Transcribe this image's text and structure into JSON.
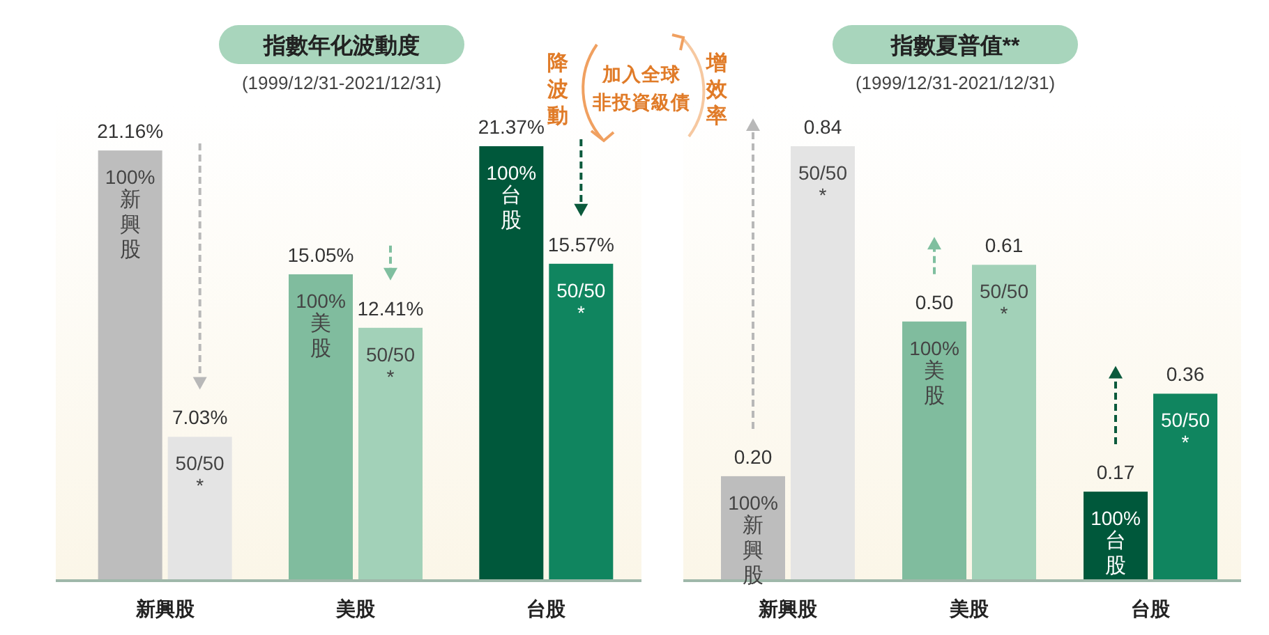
{
  "chart_data": [
    {
      "type": "bar",
      "title": "指數年化波動度",
      "subtitle": "(1999/12/31-2021/12/31)",
      "categories": [
        "新興股",
        "美股",
        "台股"
      ],
      "series": [
        {
          "name": "100%",
          "colors": [
            "#bdbdbd",
            "#80bc9e",
            "#00583b"
          ],
          "values": [
            21.16,
            15.05,
            21.37
          ],
          "value_labels": [
            "21.16%",
            "15.05%",
            "21.37%"
          ]
        },
        {
          "name": "50/50 *",
          "colors": [
            "#e4e4e4",
            "#a2d1b8",
            "#10855f"
          ],
          "values": [
            7.03,
            12.41,
            15.57
          ],
          "value_labels": [
            "7.03%",
            "12.41%",
            "15.57%"
          ]
        }
      ],
      "annotations": [
        {
          "text": "新興股",
          "x": "新興股",
          "y": 21.16
        },
        {
          "text": "美股",
          "x": "美股",
          "y": 15.05
        },
        {
          "text": "台股",
          "x": "台股",
          "y": 21.37
        },
        "降波動",
        "加入全球",
        "非投資級債",
        "增效率"
      ]
    },
    {
      "type": "bar",
      "title": "指數夏普值**",
      "subtitle": "(1999/12/31-2021/12/31)",
      "categories": [
        "新興股",
        "美股",
        "台股"
      ],
      "series": [
        {
          "name": "100%",
          "colors": [
            "#bdbdbd",
            "#80bc9e",
            "#00583b"
          ],
          "values": [
            0.2,
            0.5,
            0.17
          ],
          "value_labels": [
            "0.20",
            "0.50",
            "0.17"
          ]
        },
        {
          "name": "50/50 *",
          "colors": [
            "#e4e4e4",
            "#a2d1b8",
            "#10855f"
          ],
          "values": [
            0.84,
            0.61,
            0.36
          ],
          "value_labels": [
            "0.84",
            "0.61",
            "0.36"
          ]
        }
      ],
      "annotations": [
        {
          "text": "新興股",
          "x": "新興股",
          "y": 0.2
        },
        {
          "text": "美股",
          "x": "美股",
          "y": 0.5
        },
        {
          "text": "台股",
          "x": "台股",
          "y": 0.17
        }
      ]
    }
  ]
}
